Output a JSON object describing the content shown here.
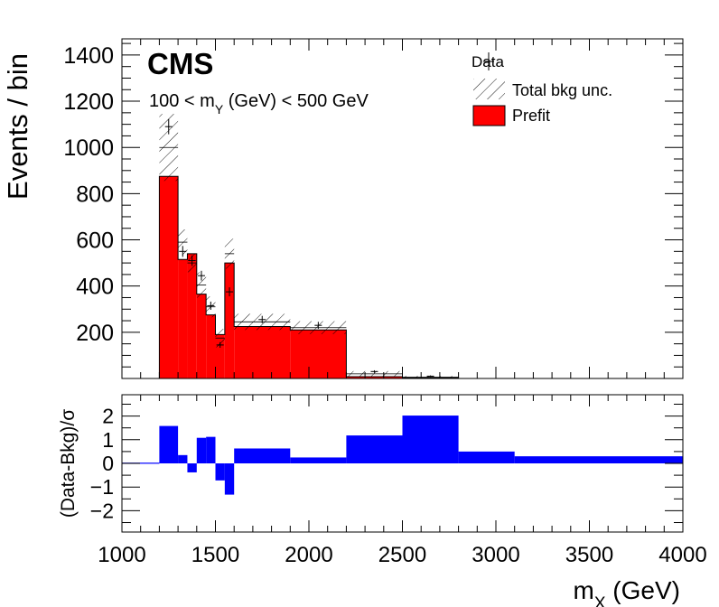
{
  "labels": {
    "experiment": "CMS",
    "selection_prefix": "100 < m",
    "selection_sub": "Y",
    "selection_suffix": " (GeV) < 500 GeV",
    "ylabel_main": "Events / bin",
    "ylabel_ratio": "(Data-Bkg)/σ",
    "xlabel_base": "m",
    "xlabel_sub": "X",
    "xlabel_unit": " (GeV)"
  },
  "legend": [
    {
      "label": "Data",
      "style": "marker"
    },
    {
      "label": "Total bkg unc.",
      "style": "hatch"
    },
    {
      "label": "Prefit",
      "style": "fill",
      "color": "#ff0000"
    }
  ],
  "colors": {
    "prefit": "#ff0000",
    "pull": "#0000ff",
    "hatch": "#000000"
  },
  "chart_data": [
    {
      "type": "bar",
      "subtype": "stacked-histogram",
      "xlim": [
        1000,
        4000
      ],
      "ylim": [
        0,
        1470
      ],
      "yticks": [
        200,
        400,
        600,
        800,
        1000,
        1200,
        1400
      ],
      "bin_edges": [
        1000,
        1200,
        1300,
        1350,
        1400,
        1450,
        1500,
        1550,
        1600,
        1900,
        2200,
        2500,
        2800,
        3100,
        4000
      ],
      "series": [
        {
          "name": "Prefit",
          "values": [
            0,
            875,
            515,
            540,
            365,
            275,
            190,
            500,
            225,
            210,
            8,
            3,
            0,
            0
          ]
        },
        {
          "name": "Total bkg unc.",
          "values": [
            0,
            1000,
            590,
            500,
            405,
            310,
            175,
            540,
            245,
            220,
            20,
            6,
            0,
            0
          ]
        },
        {
          "name": "Total bkg unc.",
          "values": [
            0,
            145,
            55,
            40,
            55,
            45,
            40,
            65,
            35,
            28,
            12,
            5,
            0,
            0
          ]
        },
        {
          "name": "Data",
          "values": [
            0,
            1090,
            550,
            510,
            445,
            315,
            145,
            375,
            255,
            230,
            30,
            10,
            0,
            0
          ]
        }
      ]
    },
    {
      "type": "bar",
      "subtype": "pull",
      "ylabel": "(Data-Bkg)/σ",
      "ylim": [
        -2.9,
        2.9
      ],
      "yticks": [
        -2,
        -1,
        0,
        1,
        2
      ],
      "xlim": [
        1000,
        4000
      ],
      "xticks": [
        1000,
        1500,
        2000,
        2500,
        3000,
        3500,
        4000
      ],
      "bin_edges": [
        1000,
        1200,
        1300,
        1350,
        1400,
        1450,
        1500,
        1550,
        1600,
        1900,
        2200,
        2500,
        2800,
        3100,
        4000
      ],
      "values": [
        0.03,
        1.58,
        0.35,
        -0.38,
        1.08,
        1.12,
        -0.72,
        -1.32,
        0.63,
        0.25,
        1.18,
        2.02,
        0.5,
        0.3
      ]
    }
  ]
}
